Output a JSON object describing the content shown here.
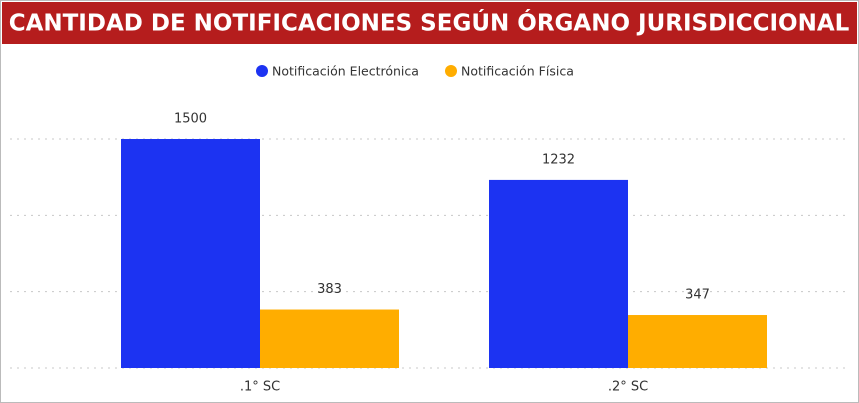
{
  "chart_data": {
    "type": "bar",
    "title": "CANTIDAD DE NOTIFICACIONES SEGÚN ÓRGANO JURISDICCIONAL",
    "categories": [
      ".1° SC",
      ".2° SC"
    ],
    "series": [
      {
        "name": "Notificación Electrónica",
        "color": "#1c33f2",
        "values": [
          1500,
          1232
        ]
      },
      {
        "name": "Notificación Física",
        "color": "#ffad00",
        "values": [
          383,
          347
        ]
      }
    ],
    "ylim": [
      0,
      1500
    ],
    "yticks": [
      0,
      500,
      1000,
      1500
    ],
    "grid": true,
    "legend": "top"
  }
}
